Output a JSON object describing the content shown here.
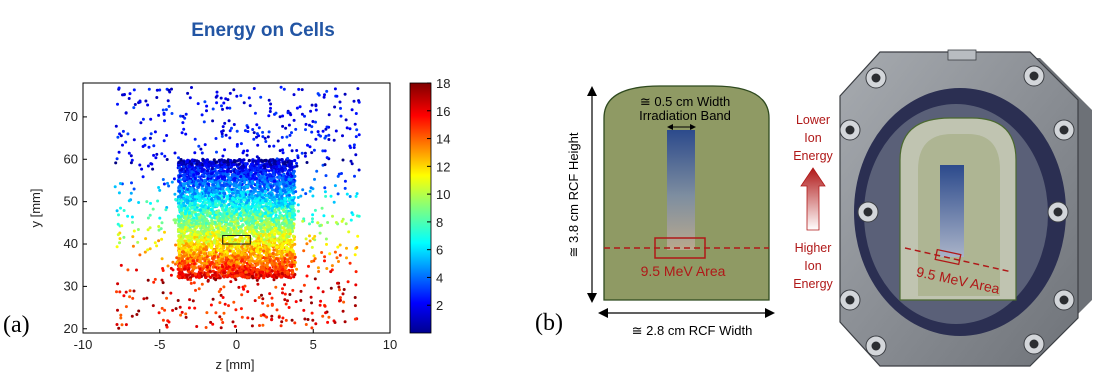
{
  "panel_a": {
    "label": "(a)",
    "title": "Energy on Cells",
    "chart_data": {
      "type": "scatter",
      "title": "Energy on Cells",
      "xlabel": "z [mm]",
      "ylabel": "y [mm]",
      "xlim": [
        -10,
        10
      ],
      "ylim": [
        19,
        78
      ],
      "x_ticks": [
        -10,
        -5,
        0,
        5,
        10
      ],
      "y_ticks": [
        20,
        30,
        40,
        50,
        60,
        70
      ],
      "colorbar": {
        "min": 0,
        "max": 18,
        "ticks": [
          2,
          4,
          6,
          8,
          10,
          12,
          14,
          16,
          18
        ],
        "colormap": "jet"
      },
      "dense_region": {
        "z": [
          -3.8,
          3.8
        ],
        "y": [
          32,
          60
        ],
        "value_at_y32": 16,
        "value_at_y60": 1
      },
      "highlight_box": {
        "z": [
          -0.9,
          0.9
        ],
        "y": [
          40,
          42
        ]
      }
    }
  },
  "panel_b": {
    "label": "(b)",
    "band_label_line1": "≅ 0.5 cm Width",
    "band_label_line2": "Irradiation Band",
    "height_label": "≅ 3.8 cm RCF Height",
    "width_label": "≅ 2.8 cm RCF Width",
    "area_label": "9.5 MeV Area",
    "lower_label": [
      "Lower",
      "Ion",
      "Energy"
    ],
    "higher_label": [
      "Higher",
      "Ion",
      "Energy"
    ],
    "colors": {
      "film": "#8f9a64",
      "film_border": "#2f4a1f",
      "accent_red": "#b01818",
      "band_top": "#3a4f8a"
    }
  },
  "holder": {
    "area_label": "9.5 MeV Area",
    "colors": {
      "frame": "#8e9196",
      "ring": "#2b2f52",
      "window": "#c9cdb6"
    }
  }
}
